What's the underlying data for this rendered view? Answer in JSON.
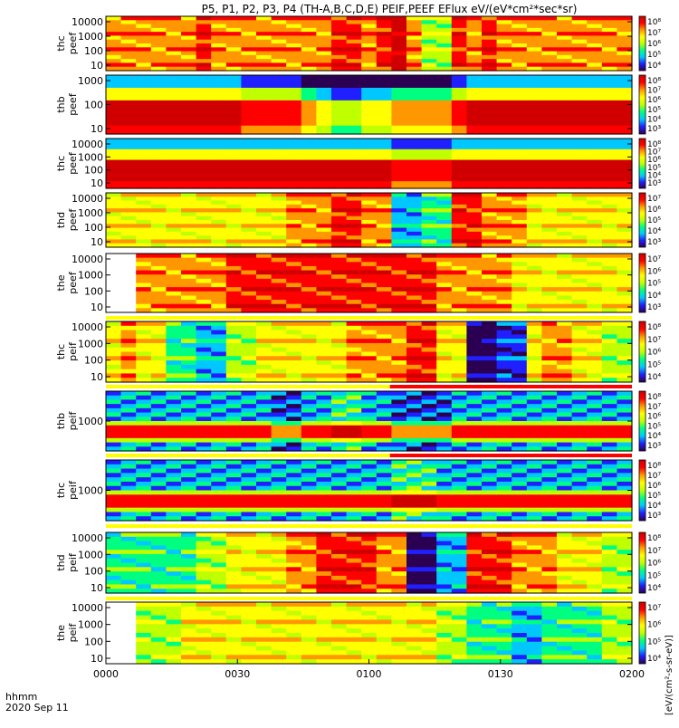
{
  "chart_data": {
    "type": "heatmap",
    "title": "P5, P1, P2, P3, P4 (TH-A,B,C,D,E) PEIF,PEEF EFlux eV/(eV*cm²*sec*sr)",
    "x_axis": {
      "label_top": "hhmm",
      "label_bottom": "2020 Sep 11",
      "ticks": [
        "0000",
        "0030",
        "0100",
        "0130",
        "0200"
      ],
      "range_minutes": [
        0,
        120
      ]
    },
    "colorbar_unit_label": "[eV/(cm²-s-sr-eV)]",
    "colormap": [
      "#2b0052",
      "#2020ff",
      "#00c8ff",
      "#00ff80",
      "#c0ff00",
      "#ffff00",
      "#ff9800",
      "#ff0000",
      "#d00000"
    ],
    "panels": [
      {
        "probe": "thc",
        "product": "peef",
        "yticks": [
          "10000",
          "1000",
          "100",
          "10"
        ],
        "cb_ticks": [
          "10⁸",
          "10⁷",
          "10⁶",
          "10⁵",
          "10⁴"
        ],
        "cols": [
          6,
          6,
          6,
          6,
          6,
          6,
          7,
          6,
          6,
          6,
          6,
          6,
          6,
          6,
          6,
          7,
          7,
          6,
          7,
          8,
          6,
          4,
          4,
          7,
          6,
          7,
          6,
          6,
          6,
          6,
          6,
          6,
          6,
          6,
          6
        ]
      },
      {
        "probe": "thb",
        "product": "peef",
        "yticks": [
          "1000",
          "100",
          "10"
        ],
        "cb_ticks": [
          "10⁸",
          "10⁷",
          "10⁶",
          "10⁵",
          "10⁴",
          "10³"
        ],
        "cols": [
          7,
          7,
          7,
          7,
          7,
          7,
          7,
          7,
          7,
          6,
          6,
          6,
          6,
          5,
          4,
          3,
          3,
          4,
          4,
          5,
          5,
          5,
          5,
          6,
          7,
          7,
          7,
          7,
          7,
          7,
          7,
          7,
          7,
          7,
          7
        ]
      },
      {
        "probe": "thc",
        "product": "peef",
        "yticks": [
          "10000",
          "1000",
          "100",
          "10"
        ],
        "cb_ticks": [
          "10⁸",
          "10⁷",
          "10⁶",
          "10⁵",
          "10⁴",
          "10³"
        ],
        "cols": [
          7,
          7,
          7,
          7,
          7,
          7,
          7,
          7,
          7,
          7,
          7,
          7,
          7,
          7,
          7,
          7,
          7,
          7,
          7,
          6,
          6,
          6,
          6,
          7,
          7,
          7,
          7,
          7,
          7,
          7,
          7,
          7,
          7,
          7,
          7
        ]
      },
      {
        "probe": "thd",
        "product": "peef",
        "yticks": [
          "10000",
          "1000",
          "100",
          "10"
        ],
        "cb_ticks": [
          "10⁷",
          "10⁶",
          "10⁵",
          "10⁴",
          "10³"
        ],
        "cols": [
          5,
          5,
          5,
          5,
          5,
          5,
          5,
          5,
          5,
          5,
          5,
          5,
          6,
          6,
          6,
          7,
          7,
          6,
          6,
          2,
          2,
          3,
          3,
          7,
          7,
          6,
          6,
          6,
          5,
          5,
          5,
          5,
          5,
          5,
          5
        ]
      },
      {
        "probe": "the",
        "product": "peef",
        "yticks": [
          "10000",
          "1000",
          "100",
          "10"
        ],
        "cb_ticks": [
          "10⁷",
          "10⁶",
          "10⁵",
          "10⁴",
          "10³"
        ],
        "cols": [
          -1,
          -1,
          6,
          6,
          6,
          6,
          6,
          6,
          7,
          7,
          7,
          7,
          7,
          7,
          7,
          7,
          7,
          7,
          7,
          7,
          7,
          7,
          6,
          6,
          6,
          6,
          6,
          5,
          5,
          5,
          5,
          5,
          5,
          5,
          5
        ]
      },
      {
        "probe": "thc",
        "product": "peif",
        "yticks": [
          "10000",
          "1000",
          "100",
          "10"
        ],
        "cb_ticks": [
          "10⁸",
          "10⁷",
          "10⁶",
          "10⁵",
          "10⁴"
        ],
        "cols": [
          5,
          6,
          5,
          5,
          3,
          3,
          2,
          2,
          4,
          4,
          5,
          5,
          5,
          5,
          5,
          5,
          6,
          6,
          6,
          6,
          7,
          7,
          5,
          5,
          0,
          0,
          1,
          1,
          5,
          6,
          6,
          5,
          5,
          4,
          4
        ]
      },
      {
        "probe": "thb",
        "product": "peif",
        "yticks": [
          "1000"
        ],
        "cb_ticks": [
          "10⁸",
          "10⁷",
          "10⁶",
          "10⁵",
          "10⁴",
          "10³"
        ],
        "cols": [
          2,
          2,
          2,
          2,
          2,
          2,
          2,
          2,
          2,
          2,
          2,
          1,
          1,
          2,
          2,
          3,
          3,
          2,
          2,
          1,
          1,
          1,
          1,
          2,
          2,
          2,
          2,
          2,
          2,
          2,
          2,
          2,
          2,
          2,
          2
        ]
      },
      {
        "probe": "thc",
        "product": "peif",
        "yticks": [
          "1000"
        ],
        "cb_ticks": [
          "10⁸",
          "10⁷",
          "10⁶",
          "10⁵",
          "10⁴",
          "10³"
        ],
        "cols": [
          2,
          2,
          2,
          2,
          2,
          2,
          2,
          2,
          2,
          2,
          2,
          2,
          2,
          2,
          2,
          2,
          2,
          2,
          2,
          3,
          3,
          3,
          2,
          2,
          2,
          2,
          2,
          2,
          2,
          2,
          2,
          2,
          2,
          2,
          2
        ]
      },
      {
        "probe": "thd",
        "product": "peif",
        "yticks": [
          "10000",
          "1000",
          "100",
          "10"
        ],
        "cb_ticks": [
          "10⁸",
          "10⁷",
          "10⁶",
          "10⁵",
          "10⁴"
        ],
        "cols": [
          3,
          3,
          3,
          3,
          3,
          3,
          4,
          4,
          5,
          5,
          5,
          5,
          6,
          6,
          7,
          7,
          7,
          7,
          6,
          6,
          0,
          0,
          2,
          2,
          7,
          7,
          7,
          6,
          6,
          6,
          5,
          5,
          5,
          4,
          4
        ]
      },
      {
        "probe": "the",
        "product": "peif",
        "yticks": [
          "10000",
          "1000",
          "100",
          "10"
        ],
        "cb_ticks": [
          "10⁷",
          "10⁶",
          "10⁵",
          "10⁴"
        ],
        "cols": [
          -1,
          -1,
          4,
          4,
          4,
          5,
          5,
          5,
          5,
          5,
          5,
          5,
          5,
          5,
          5,
          5,
          5,
          5,
          5,
          5,
          5,
          5,
          4,
          4,
          3,
          3,
          3,
          2,
          2,
          3,
          3,
          3,
          3,
          4,
          4
        ]
      }
    ]
  }
}
